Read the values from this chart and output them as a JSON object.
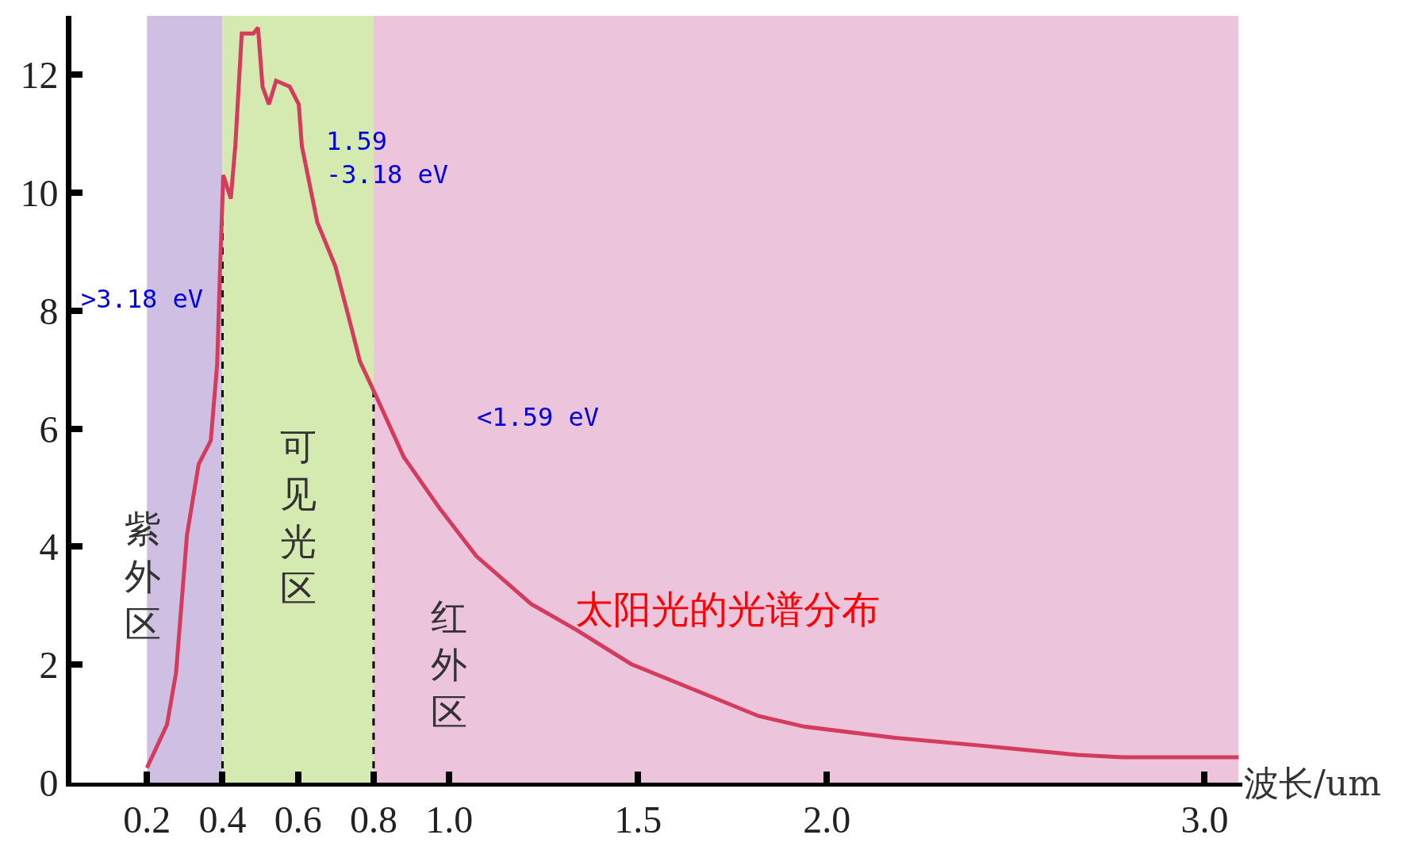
{
  "chart_data": {
    "type": "line",
    "title": "太阳光的光谱分布",
    "xlabel": "波长/um",
    "x": [
      0.2,
      0.253,
      0.277,
      0.306,
      0.337,
      0.369,
      0.386,
      0.393,
      0.402,
      0.422,
      0.434,
      0.451,
      0.482,
      0.494,
      0.506,
      0.523,
      0.542,
      0.578,
      0.602,
      0.61,
      0.651,
      0.699,
      0.735,
      0.764,
      0.807,
      0.88,
      0.976,
      1.072,
      1.217,
      1.337,
      1.482,
      1.651,
      1.819,
      1.94,
      2.181,
      2.422,
      2.663,
      2.783,
      3.09
    ],
    "series": [
      {
        "color": "#d43c5e",
        "values": [
          0.25,
          0.98,
          1.86,
          4.2,
          5.4,
          5.8,
          7.1,
          8.6,
          10.3,
          9.9,
          10.8,
          12.7,
          12.7,
          12.8,
          11.8,
          11.5,
          11.9,
          11.8,
          11.5,
          10.8,
          9.5,
          8.75,
          7.87,
          7.14,
          6.55,
          5.52,
          4.64,
          3.84,
          3.03,
          2.59,
          2.01,
          1.57,
          1.13,
          0.95,
          0.76,
          0.62,
          0.47,
          0.43,
          0.43
        ]
      }
    ],
    "xlim": [
      0,
      3.1
    ],
    "xticks": [
      0.2,
      0.4,
      0.6,
      0.8,
      {
        "value": 1.0,
        "label": "1.0"
      },
      1.5,
      {
        "value": 2.0,
        "label": "2.0"
      },
      {
        "value": 3.0,
        "label": "3.0"
      }
    ],
    "ylim": [
      0,
      13
    ],
    "yticks": [
      0,
      2,
      4,
      6,
      8,
      10,
      12
    ],
    "bands": [
      {
        "axis": "x",
        "from": 0.2,
        "to": 0.4,
        "label": "紫外区",
        "color": "#cfc0e3"
      },
      {
        "axis": "x",
        "from": 0.4,
        "to": 0.8,
        "label": "可见光区",
        "color": "#d4eab0"
      },
      {
        "axis": "x",
        "from": 0.8,
        "to": 3.09,
        "label": "红外区",
        "color": "#ecc4dc"
      }
    ],
    "ref_lines": [
      {
        "axis": "x",
        "value": 0.4,
        "line_style": "dashed",
        "color": "#000000"
      },
      {
        "axis": "x",
        "value": 0.8,
        "line_style": "dashed",
        "color": "#000000"
      }
    ],
    "annotations": [
      ">3.18 eV",
      "1.59\n-3.18 eV",
      "<1.59 eV"
    ],
    "grid": false,
    "legend": false,
    "marker": "none",
    "line_style": "solid"
  }
}
